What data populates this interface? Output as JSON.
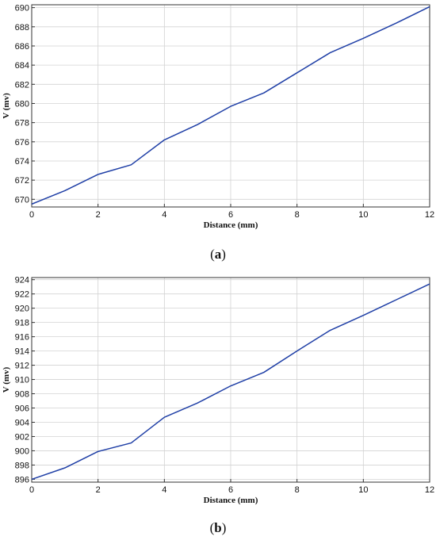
{
  "colors": {
    "line": "#1f3fa6",
    "grid": "#d3d3d3",
    "frame": "#333333",
    "text": "#111111"
  },
  "chart_data": [
    {
      "type": "line",
      "panel_label": "a",
      "xlabel": "Distance (mm)",
      "ylabel": "V (mv)",
      "xlim": [
        0,
        12
      ],
      "ylim": [
        669.2,
        690.3
      ],
      "xticks": [
        0,
        2,
        4,
        6,
        8,
        10,
        12
      ],
      "yticks": [
        670,
        672,
        674,
        676,
        678,
        680,
        682,
        684,
        686,
        688,
        690
      ],
      "grid": true,
      "series": [
        {
          "x": [
            0,
            1,
            2,
            3,
            4,
            5,
            6,
            7,
            8,
            9,
            10,
            11,
            12
          ],
          "y": [
            669.5,
            670.9,
            672.6,
            673.6,
            676.2,
            677.8,
            679.7,
            681.1,
            683.2,
            685.3,
            686.8,
            688.4,
            690.1
          ]
        }
      ]
    },
    {
      "type": "line",
      "panel_label": "b",
      "xlabel": "Distance (mm)",
      "ylabel": "V (mv)",
      "xlim": [
        0,
        12
      ],
      "ylim": [
        895.6,
        924.3
      ],
      "xticks": [
        0,
        2,
        4,
        6,
        8,
        10,
        12
      ],
      "yticks": [
        896,
        898,
        900,
        902,
        904,
        906,
        908,
        910,
        912,
        914,
        916,
        918,
        920,
        922,
        924
      ],
      "grid": true,
      "series": [
        {
          "x": [
            0,
            1,
            2,
            3,
            4,
            5,
            6,
            7,
            8,
            9,
            10,
            11,
            12
          ],
          "y": [
            896.0,
            897.6,
            899.9,
            901.1,
            904.7,
            906.7,
            909.1,
            911.0,
            914.0,
            916.9,
            919.0,
            921.2,
            923.4
          ]
        }
      ]
    }
  ]
}
